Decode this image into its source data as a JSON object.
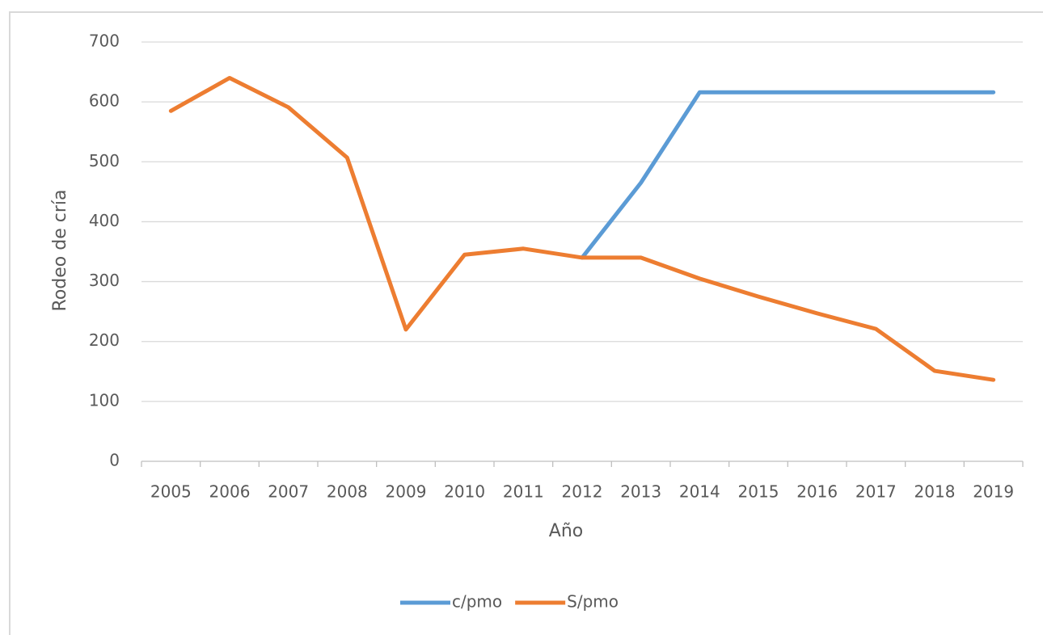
{
  "chart_data": {
    "type": "line",
    "y_label": "Rodeo de cría",
    "x_label": "Año",
    "categories": [
      "2005",
      "2006",
      "2007",
      "2008",
      "2009",
      "2010",
      "2011",
      "2012",
      "2013",
      "2014",
      "2015",
      "2016",
      "2017",
      "2018",
      "2019"
    ],
    "series": [
      {
        "name": "c/pmo",
        "color": "#5b9bd5",
        "values": [
          null,
          null,
          null,
          null,
          null,
          null,
          null,
          340,
          465,
          616,
          616,
          616,
          616,
          616,
          616
        ]
      },
      {
        "name": "S/pmo",
        "color": "#ed7d31",
        "values": [
          585,
          640,
          591,
          507,
          220,
          345,
          355,
          340,
          340,
          305,
          275,
          247,
          221,
          151,
          136
        ]
      }
    ],
    "ylim": [
      0,
      700
    ],
    "yticks": [
      0,
      100,
      200,
      300,
      400,
      500,
      600,
      700
    ],
    "grid": true,
    "legend": "bottom"
  }
}
